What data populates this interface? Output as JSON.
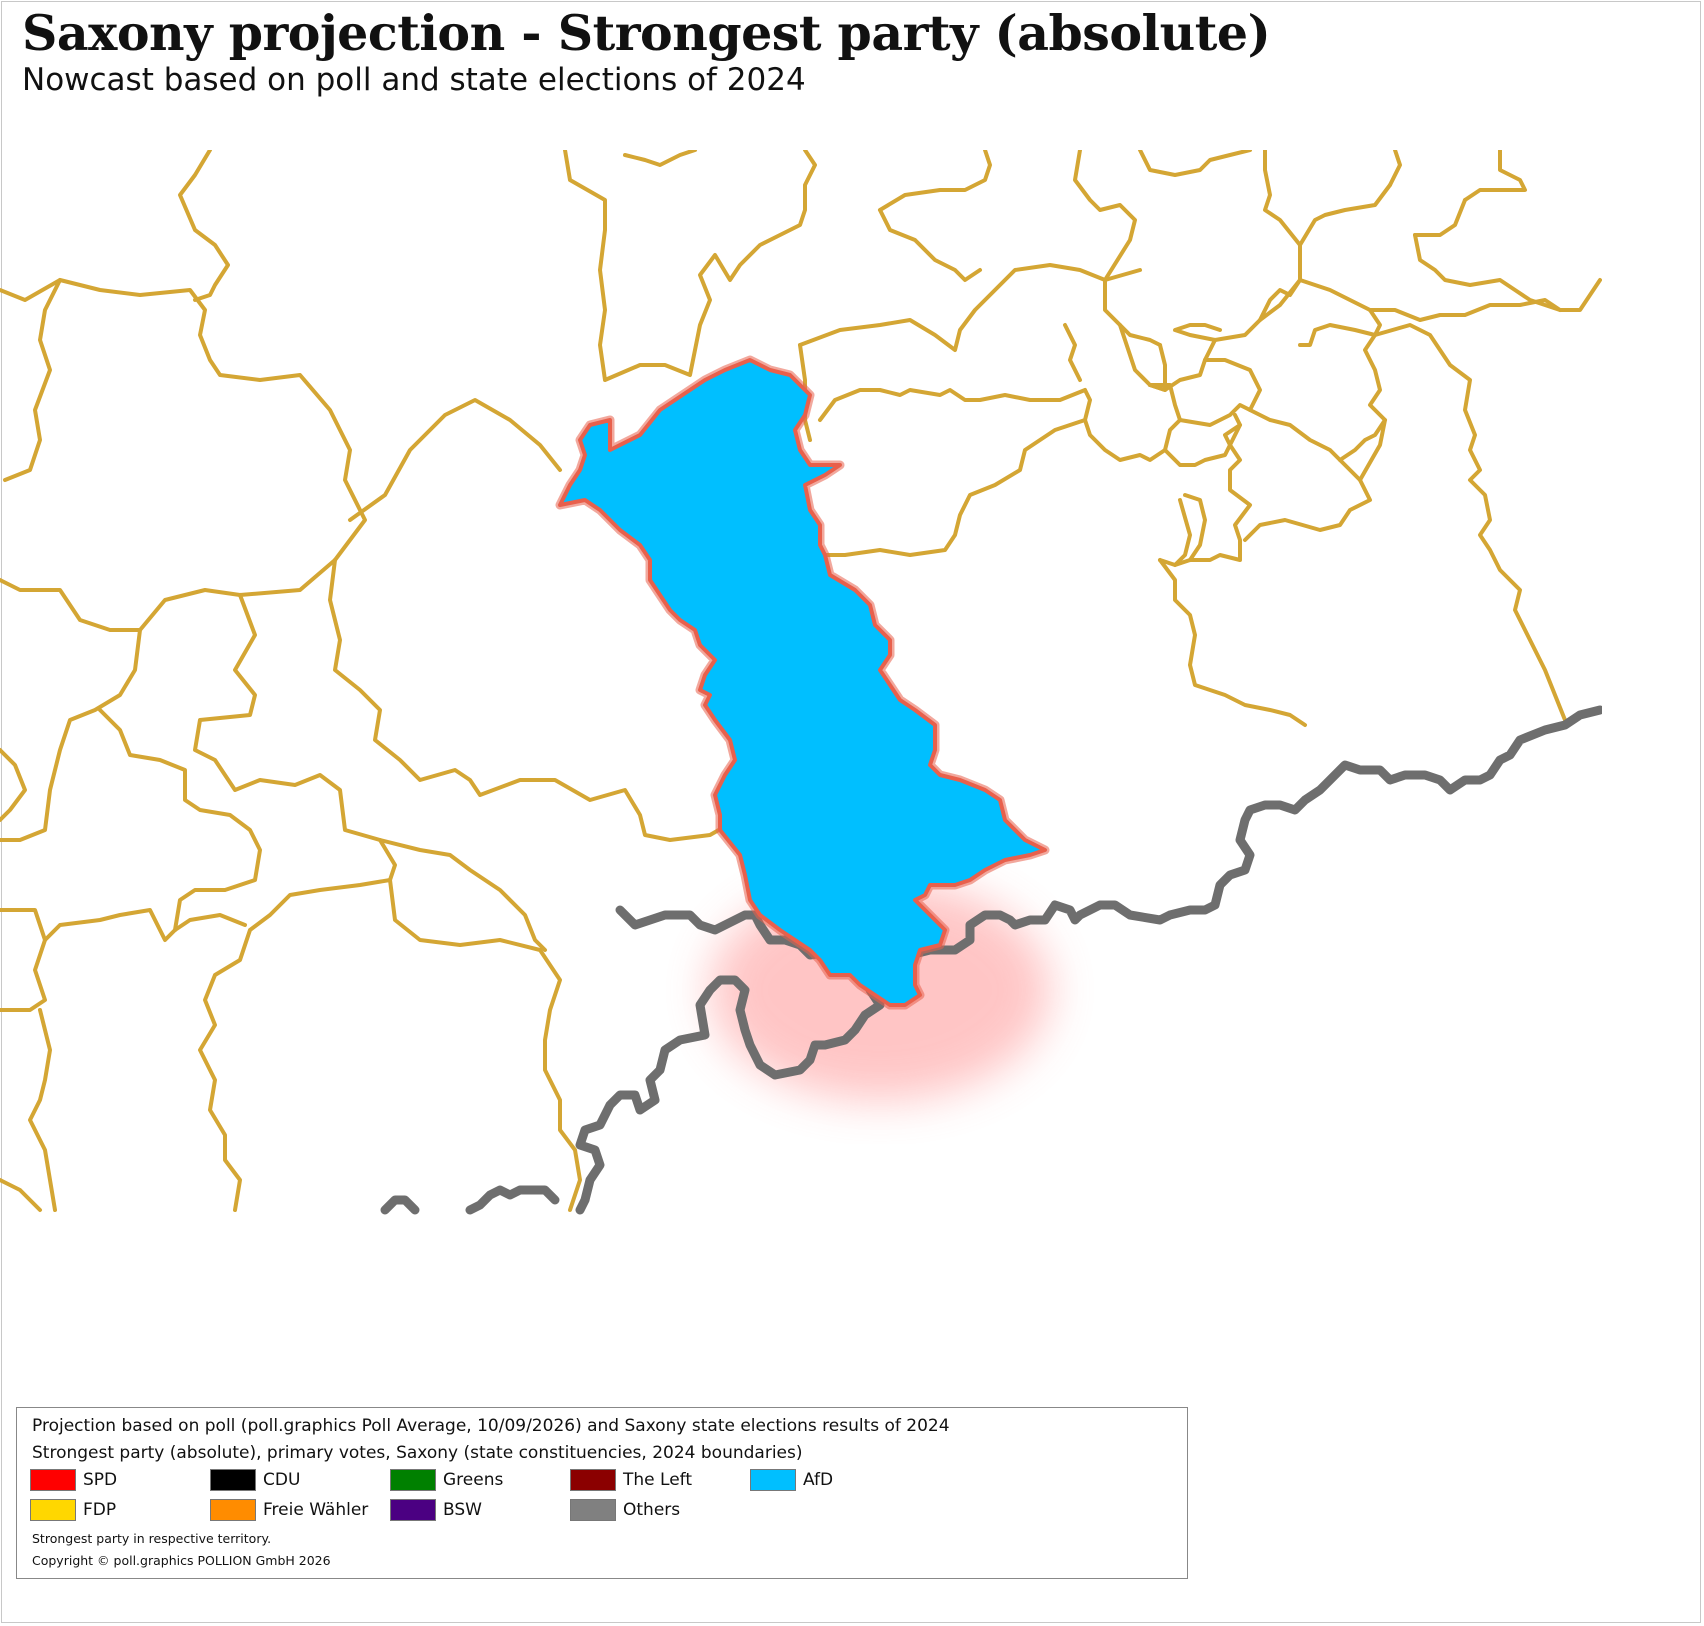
{
  "header": {
    "title": "Saxony projection - Strongest party (absolute)",
    "subtitle": "Nowcast based on poll and state elections of 2024"
  },
  "map": {
    "highlighted_constituency_party": "AfD",
    "fill_color": "#00BFFF",
    "boundary_color": "#D4A634",
    "highlight_outline_color": "#E8604C",
    "state_border_color": "#6E6E6E"
  },
  "legend": {
    "line1": "Projection based on poll (poll.graphics Poll Average, 10/09/2026) and Saxony state elections results of 2024",
    "line2": "Strongest party (absolute), primary votes, Saxony (state constituencies, 2024 boundaries)",
    "items": [
      {
        "label": "SPD",
        "color": "#FF0000"
      },
      {
        "label": "CDU",
        "color": "#000000"
      },
      {
        "label": "Greens",
        "color": "#008000"
      },
      {
        "label": "The Left",
        "color": "#8B0000"
      },
      {
        "label": "AfD",
        "color": "#00BFFF"
      },
      {
        "label": "FDP",
        "color": "#FFD700"
      },
      {
        "label": "Freie Wähler",
        "color": "#FF8C00"
      },
      {
        "label": "BSW",
        "color": "#4B0082"
      },
      {
        "label": "Others",
        "color": "#808080"
      }
    ],
    "note": "Strongest party in respective territory.",
    "copyright": "Copyright © poll.graphics POLLION GmbH 2026"
  }
}
